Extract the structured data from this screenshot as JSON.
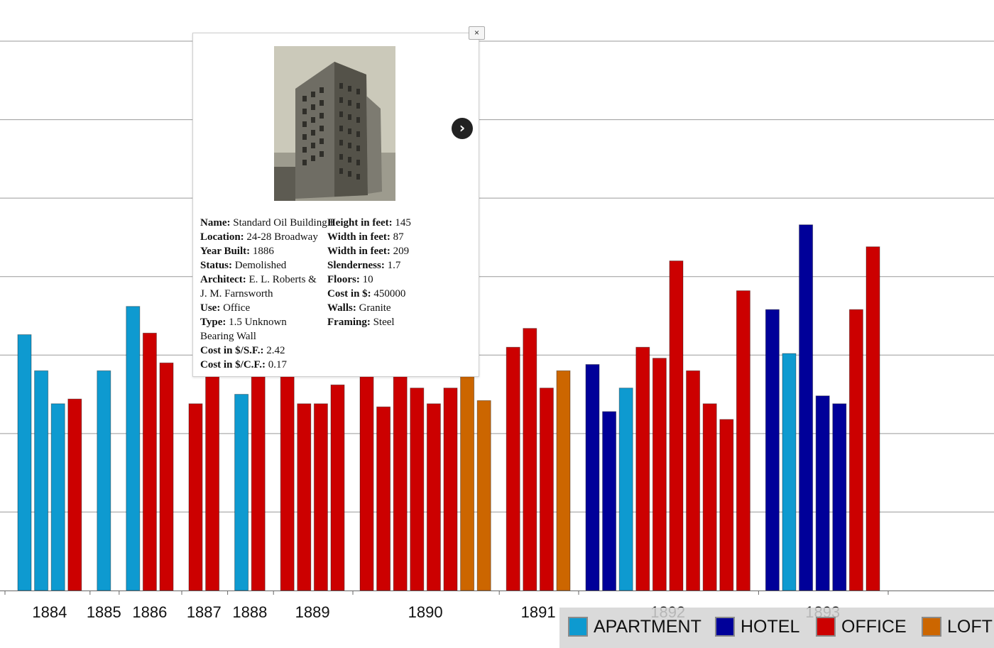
{
  "chart_data": {
    "type": "bar",
    "ylim": [
      0,
      350
    ],
    "grid": true,
    "colors": {
      "APARTMENT": "#0e9ad0",
      "HOTEL": "#000099",
      "OFFICE": "#cc0000",
      "LOFT": "#cc6600"
    },
    "legend": [
      "APARTMENT",
      "HOTEL",
      "OFFICE",
      "LOFT"
    ],
    "legend_position": "bottom-right",
    "groups": [
      {
        "year": "1884",
        "bars": [
          {
            "type": "APARTMENT",
            "value": 163
          },
          {
            "type": "APARTMENT",
            "value": 140
          },
          {
            "type": "APARTMENT",
            "value": 119
          },
          {
            "type": "OFFICE",
            "value": 122
          }
        ]
      },
      {
        "year": "1885",
        "bars": [
          {
            "type": "APARTMENT",
            "value": 140
          }
        ]
      },
      {
        "year": "1886",
        "bars": [
          {
            "type": "APARTMENT",
            "value": 181
          },
          {
            "type": "OFFICE",
            "value": 164
          },
          {
            "type": "OFFICE",
            "value": 145
          }
        ]
      },
      {
        "year": "1887",
        "bars": [
          {
            "type": "OFFICE",
            "value": 119
          },
          {
            "type": "OFFICE",
            "value": 140
          }
        ]
      },
      {
        "year": "1888",
        "bars": [
          {
            "type": "APARTMENT",
            "value": 125
          },
          {
            "type": "OFFICE",
            "value": 140
          }
        ]
      },
      {
        "year": "1889",
        "bars": [
          {
            "type": "OFFICE",
            "value": 140
          },
          {
            "type": "OFFICE",
            "value": 119
          },
          {
            "type": "OFFICE",
            "value": 119
          },
          {
            "type": "OFFICE",
            "value": 131
          }
        ]
      },
      {
        "year": "1890",
        "bars": [
          {
            "type": "OFFICE",
            "value": 140
          },
          {
            "type": "OFFICE",
            "value": 117
          },
          {
            "type": "OFFICE",
            "value": 171
          },
          {
            "type": "OFFICE",
            "value": 129
          },
          {
            "type": "OFFICE",
            "value": 119
          },
          {
            "type": "OFFICE",
            "value": 129
          },
          {
            "type": "LOFT",
            "value": 144
          },
          {
            "type": "LOFT",
            "value": 121
          }
        ]
      },
      {
        "year": "1891",
        "bars": [
          {
            "type": "OFFICE",
            "value": 155
          },
          {
            "type": "OFFICE",
            "value": 167
          },
          {
            "type": "OFFICE",
            "value": 129
          },
          {
            "type": "LOFT",
            "value": 140
          }
        ]
      },
      {
        "year": "1892",
        "bars": [
          {
            "type": "HOTEL",
            "value": 144
          },
          {
            "type": "HOTEL",
            "value": 114
          },
          {
            "type": "APARTMENT",
            "value": 129
          },
          {
            "type": "OFFICE",
            "value": 155
          },
          {
            "type": "OFFICE",
            "value": 148
          },
          {
            "type": "OFFICE",
            "value": 210
          },
          {
            "type": "OFFICE",
            "value": 140
          },
          {
            "type": "OFFICE",
            "value": 119
          },
          {
            "type": "OFFICE",
            "value": 109
          },
          {
            "type": "OFFICE",
            "value": 191
          }
        ]
      },
      {
        "year": "1893",
        "bars": [
          {
            "type": "HOTEL",
            "value": 179
          },
          {
            "type": "APARTMENT",
            "value": 151
          },
          {
            "type": "HOTEL",
            "value": 233
          },
          {
            "type": "HOTEL",
            "value": 124
          },
          {
            "type": "HOTEL",
            "value": 119
          },
          {
            "type": "OFFICE",
            "value": 179
          },
          {
            "type": "OFFICE",
            "value": 219
          }
        ]
      }
    ]
  },
  "popup": {
    "close_label": "×",
    "next_label": "›",
    "left_rows": [
      {
        "label": "Name:",
        "value": " Standard Oil Building I"
      },
      {
        "label": "Location:",
        "value": " 24-28 Broadway"
      },
      {
        "label": "Year Built:",
        "value": " 1886"
      },
      {
        "label": "Status:",
        "value": " Demolished"
      },
      {
        "label": "Architect:",
        "value": " E. L. Roberts &"
      },
      {
        "label": "",
        "value": "J. M. Farnsworth"
      },
      {
        "label": "Use:",
        "value": " Office"
      },
      {
        "label": "Type:",
        "value": " 1.5 Unknown"
      },
      {
        "label": "",
        "value": "Bearing Wall"
      },
      {
        "label": "Cost in $/S.F.:",
        "value": " 2.42"
      },
      {
        "label": "Cost in $/C.F.:",
        "value": " 0.17"
      }
    ],
    "right_rows": [
      {
        "label": "Height in feet:",
        "value": " 145"
      },
      {
        "label": "Width in feet:",
        "value": " 87"
      },
      {
        "label": "Width in feet:",
        "value": " 209"
      },
      {
        "label": "Slenderness:",
        "value": " 1.7"
      },
      {
        "label": "Floors:",
        "value": " 10"
      },
      {
        "label": "Cost in $:",
        "value": " 450000"
      },
      {
        "label": "Walls:",
        "value": " Granite"
      },
      {
        "label": "Framing:",
        "value": " Steel"
      }
    ]
  }
}
